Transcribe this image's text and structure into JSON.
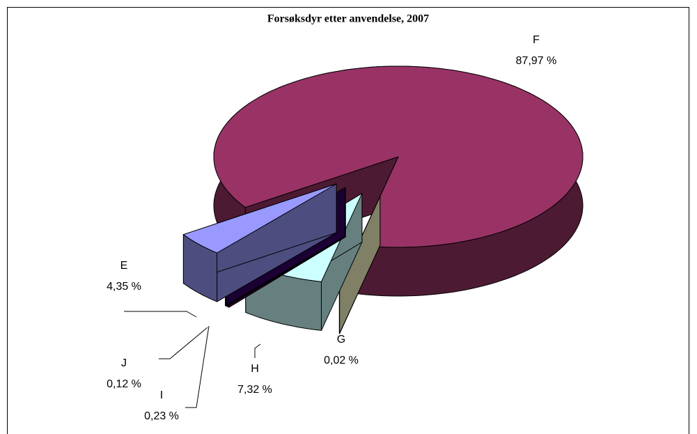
{
  "chart_data": {
    "type": "pie",
    "title": "Forsøksdyr etter anvendelse, 2007",
    "categories": [
      "F",
      "G",
      "H",
      "I",
      "J",
      "E"
    ],
    "values": [
      87.97,
      0.02,
      7.32,
      0.23,
      0.12,
      4.35
    ],
    "value_labels": [
      "87,97 %",
      "0,02 %",
      "7,32 %",
      "0,23 %",
      "0,12 %",
      "4,35 %"
    ],
    "colors": [
      "#993366",
      "#ffffcc",
      "#ccffff",
      "#660066",
      "#330066",
      "#9999ff"
    ]
  }
}
